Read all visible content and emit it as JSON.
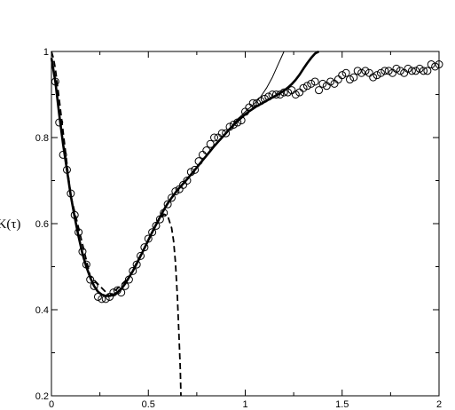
{
  "chart_data": {
    "type": "scatter",
    "title": "",
    "xlabel": "",
    "ylabel": "K(τ)",
    "xlim": [
      0,
      2
    ],
    "ylim": [
      0.2,
      1.0
    ],
    "grid": false,
    "x_ticks": [
      "0",
      "0.5",
      "1",
      "1.5",
      "2"
    ],
    "y_ticks": [
      "0.2",
      "0.4",
      "0.6",
      "0.8",
      "1"
    ],
    "series": [
      {
        "style": "open-circles",
        "x": [
          0.02,
          0.04,
          0.06,
          0.08,
          0.1,
          0.12,
          0.14,
          0.16,
          0.18,
          0.2,
          0.22,
          0.24,
          0.26,
          0.28,
          0.3,
          0.32,
          0.34,
          0.36,
          0.38,
          0.4,
          0.42,
          0.44,
          0.46,
          0.48,
          0.5,
          0.52,
          0.54,
          0.56,
          0.58,
          0.6,
          0.62,
          0.64,
          0.66,
          0.68,
          0.7,
          0.72,
          0.74,
          0.76,
          0.78,
          0.8,
          0.82,
          0.84,
          0.86,
          0.88,
          0.9,
          0.92,
          0.94,
          0.96,
          0.98,
          1.0,
          1.02,
          1.04,
          1.06,
          1.08,
          1.1,
          1.12,
          1.14,
          1.16,
          1.18,
          1.2,
          1.22,
          1.24,
          1.26,
          1.28,
          1.3,
          1.32,
          1.34,
          1.36,
          1.38,
          1.4,
          1.42,
          1.44,
          1.46,
          1.48,
          1.5,
          1.52,
          1.54,
          1.56,
          1.58,
          1.6,
          1.62,
          1.64,
          1.66,
          1.68,
          1.7,
          1.72,
          1.74,
          1.76,
          1.78,
          1.8,
          1.82,
          1.84,
          1.86,
          1.88,
          1.9,
          1.92,
          1.94,
          1.96,
          1.98,
          2.0
        ],
        "y": [
          0.93,
          0.835,
          0.76,
          0.725,
          0.67,
          0.62,
          0.58,
          0.535,
          0.505,
          0.47,
          0.455,
          0.43,
          0.425,
          0.425,
          0.43,
          0.44,
          0.445,
          0.44,
          0.455,
          0.47,
          0.49,
          0.505,
          0.525,
          0.545,
          0.565,
          0.58,
          0.595,
          0.61,
          0.625,
          0.645,
          0.66,
          0.675,
          0.68,
          0.69,
          0.7,
          0.72,
          0.725,
          0.745,
          0.76,
          0.77,
          0.785,
          0.8,
          0.8,
          0.81,
          0.81,
          0.825,
          0.83,
          0.835,
          0.84,
          0.86,
          0.87,
          0.88,
          0.88,
          0.885,
          0.89,
          0.895,
          0.9,
          0.9,
          0.9,
          0.905,
          0.905,
          0.91,
          0.9,
          0.905,
          0.915,
          0.92,
          0.925,
          0.93,
          0.91,
          0.925,
          0.92,
          0.93,
          0.925,
          0.935,
          0.945,
          0.95,
          0.935,
          0.94,
          0.955,
          0.95,
          0.955,
          0.95,
          0.94,
          0.945,
          0.95,
          0.955,
          0.955,
          0.95,
          0.96,
          0.955,
          0.95,
          0.96,
          0.955,
          0.955,
          0.96,
          0.955,
          0.955,
          0.97,
          0.965,
          0.97
        ]
      },
      {
        "style": "thick-solid-line",
        "x": [
          0.0,
          0.02,
          0.04,
          0.06,
          0.08,
          0.1,
          0.12,
          0.14,
          0.16,
          0.18,
          0.2,
          0.22,
          0.24,
          0.26,
          0.28,
          0.3,
          0.32,
          0.34,
          0.36,
          0.38,
          0.4,
          0.42,
          0.44,
          0.46,
          0.48,
          0.5,
          0.52,
          0.54,
          0.56,
          0.58,
          0.6,
          0.62,
          0.64,
          0.66,
          0.68,
          0.7,
          0.72,
          0.74,
          0.76,
          0.78,
          0.8,
          0.82,
          0.84,
          0.86,
          0.88,
          0.9,
          0.92,
          0.94,
          0.96,
          0.98,
          1.0,
          1.02,
          1.04,
          1.06,
          1.08,
          1.1,
          1.12,
          1.14,
          1.16,
          1.18,
          1.2,
          1.22,
          1.24,
          1.26,
          1.28,
          1.3,
          1.32,
          1.34,
          1.36,
          1.38
        ],
        "y": [
          0.985,
          0.93,
          0.855,
          0.785,
          0.725,
          0.665,
          0.615,
          0.57,
          0.53,
          0.5,
          0.475,
          0.455,
          0.442,
          0.435,
          0.432,
          0.432,
          0.435,
          0.44,
          0.448,
          0.46,
          0.475,
          0.49,
          0.507,
          0.525,
          0.543,
          0.562,
          0.58,
          0.598,
          0.615,
          0.632,
          0.647,
          0.66,
          0.672,
          0.683,
          0.693,
          0.703,
          0.714,
          0.725,
          0.736,
          0.747,
          0.758,
          0.769,
          0.78,
          0.79,
          0.8,
          0.81,
          0.82,
          0.829,
          0.838,
          0.846,
          0.854,
          0.861,
          0.867,
          0.873,
          0.878,
          0.883,
          0.888,
          0.893,
          0.898,
          0.903,
          0.909,
          0.916,
          0.924,
          0.934,
          0.946,
          0.96,
          0.973,
          0.985,
          0.995,
          1.0
        ]
      },
      {
        "style": "thin-solid-line",
        "x": [
          0.9,
          0.95,
          1.0,
          1.05,
          1.08,
          1.11,
          1.14,
          1.17,
          1.2
        ],
        "y": [
          0.81,
          0.838,
          0.86,
          0.88,
          0.895,
          0.915,
          0.94,
          0.97,
          1.0
        ]
      },
      {
        "style": "dashed-line",
        "x": [
          0.0,
          0.01,
          0.02,
          0.04,
          0.1,
          0.2,
          0.3,
          0.4,
          0.5,
          0.55,
          0.58,
          0.6,
          0.62,
          0.63,
          0.64,
          0.65,
          0.66,
          0.665,
          0.668
        ],
        "y": [
          1.0,
          0.985,
          0.96,
          0.89,
          0.665,
          0.478,
          0.432,
          0.475,
          0.562,
          0.605,
          0.622,
          0.618,
          0.59,
          0.56,
          0.51,
          0.43,
          0.32,
          0.26,
          0.2
        ]
      }
    ]
  }
}
